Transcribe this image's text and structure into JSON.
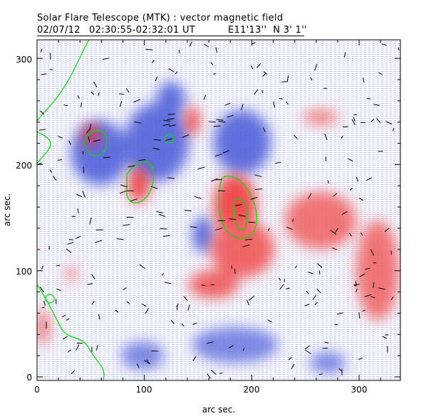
{
  "header": {
    "title": "Solar Flare Telescope (MTK) : vector magnetic field",
    "subtitle_date": "02/07/12",
    "subtitle_time": "02:30:55-02:32:01 UT",
    "subtitle_pos": "E11'13''  N 3' 1''"
  },
  "chart_data": {
    "type": "heatmap",
    "title": "Solar Flare Telescope (MTK) : vector magnetic field",
    "xlabel": "arc sec.",
    "ylabel": "arc sec.",
    "xlim": [
      0,
      338
    ],
    "ylim": [
      0,
      317
    ],
    "xticks": [
      "0",
      "100",
      "200",
      "300"
    ],
    "yticks": [
      "0",
      "100",
      "200",
      "300"
    ],
    "colors": {
      "positive": "#f05050",
      "negative": "#5060e0",
      "contour": "#00e000",
      "vector": "#000000"
    }
  }
}
